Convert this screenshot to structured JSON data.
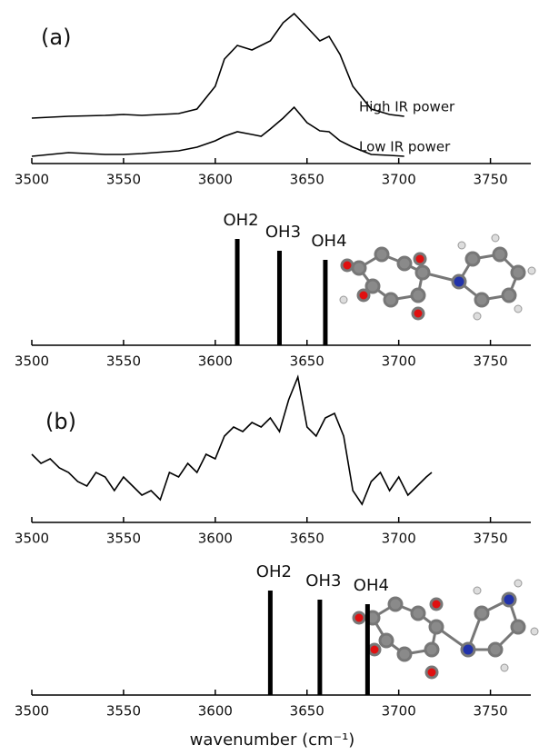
{
  "chart_data": [
    {
      "type": "line",
      "annotation": "(a)",
      "x": [
        3500,
        3520,
        3540,
        3550,
        3560,
        3580,
        3590,
        3600,
        3605,
        3612,
        3620,
        3625,
        3630,
        3637,
        3643,
        3650,
        3657,
        3662,
        3668,
        3675,
        3685,
        3695,
        3703
      ],
      "series": [
        {
          "name": "High IR power",
          "color": "#000000",
          "values": [
            5.0,
            5.2,
            5.3,
            5.4,
            5.3,
            5.5,
            6.0,
            8.5,
            11.5,
            13.0,
            12.5,
            13.0,
            13.5,
            15.5,
            16.5,
            15.0,
            13.5,
            14.0,
            12.0,
            8.5,
            6.0,
            5.4,
            5.2
          ]
        },
        {
          "name": "Low IR power",
          "color": "#000000",
          "values": [
            0.8,
            1.2,
            1.0,
            1.0,
            1.1,
            1.4,
            1.8,
            2.5,
            3.0,
            3.5,
            3.2,
            3.0,
            3.8,
            5.0,
            6.2,
            4.5,
            3.6,
            3.5,
            2.5,
            1.8,
            1.0,
            0.9,
            0.8
          ]
        }
      ],
      "xlim": [
        3500,
        3772
      ],
      "xticks": [
        3500,
        3550,
        3600,
        3650,
        3700,
        3750
      ],
      "ylim": [
        0,
        17
      ]
    },
    {
      "type": "stick",
      "x": [
        3612,
        3635,
        3660
      ],
      "labels": [
        "OH2",
        "OH3",
        "OH4"
      ],
      "values": [
        1.17,
        1.04,
        0.94
      ],
      "color": "#000000",
      "xlim": [
        3500,
        3772
      ],
      "xticks": [
        3500,
        3550,
        3600,
        3650,
        3700,
        3750
      ],
      "ylim": [
        0,
        1.4
      ]
    },
    {
      "type": "line",
      "annotation": "(b)",
      "x": [
        3500,
        3505,
        3510,
        3515,
        3520,
        3525,
        3530,
        3535,
        3540,
        3545,
        3550,
        3555,
        3560,
        3565,
        3570,
        3575,
        3580,
        3585,
        3590,
        3595,
        3600,
        3605,
        3610,
        3615,
        3620,
        3625,
        3630,
        3635,
        3640,
        3645,
        3650,
        3655,
        3660,
        3665,
        3670,
        3675,
        3680,
        3685,
        3690,
        3695,
        3700,
        3705,
        3710,
        3715,
        3718
      ],
      "series": [
        {
          "color": "#000000",
          "values": [
            7.5,
            6.5,
            7.0,
            6.0,
            5.5,
            4.5,
            4.0,
            5.5,
            5.0,
            3.5,
            5.0,
            4.0,
            3.0,
            3.5,
            2.5,
            5.5,
            5.0,
            6.5,
            5.5,
            7.5,
            7.0,
            9.5,
            10.5,
            10.0,
            11.0,
            10.5,
            11.5,
            10.0,
            13.5,
            16.0,
            10.5,
            9.5,
            11.5,
            12.0,
            9.5,
            3.5,
            2.0,
            4.5,
            5.5,
            3.5,
            5.0,
            3.0,
            4.0,
            5.0,
            5.5
          ]
        }
      ],
      "xlim": [
        3500,
        3772
      ],
      "xticks": [
        3500,
        3550,
        3600,
        3650,
        3700,
        3750
      ],
      "ylim": [
        0,
        17
      ]
    },
    {
      "type": "stick",
      "x": [
        3630,
        3657,
        3683
      ],
      "labels": [
        "OH2",
        "OH3",
        "OH4"
      ],
      "values": [
        1.15,
        1.05,
        1.0
      ],
      "color": "#000000",
      "xlim": [
        3500,
        3772
      ],
      "xticks": [
        3500,
        3550,
        3600,
        3650,
        3700,
        3750
      ],
      "ylim": [
        0,
        1.4
      ],
      "x_label": "wavenumber (cm⁻¹)"
    }
  ]
}
